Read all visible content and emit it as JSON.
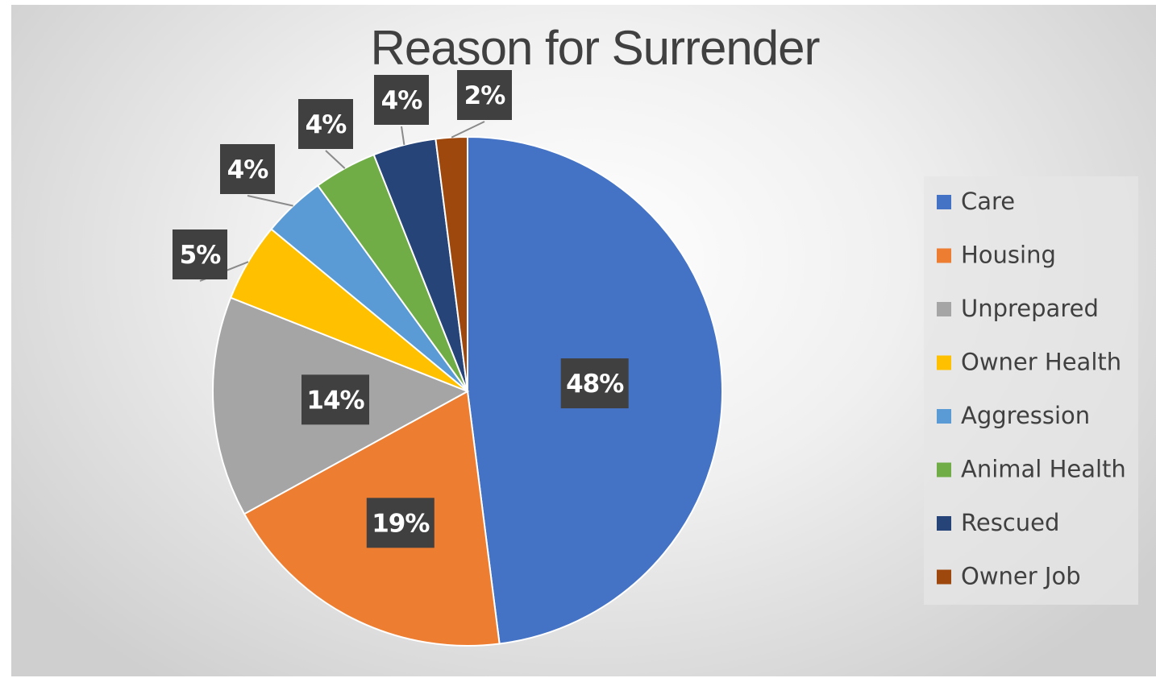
{
  "chart_data": {
    "type": "pie",
    "title": "Reason for Surrender",
    "legend_position": "right",
    "slices": [
      {
        "name": "Care",
        "value": 48,
        "label": "48%",
        "color": "#4472C4"
      },
      {
        "name": "Housing",
        "value": 19,
        "label": "19%",
        "color": "#ED7D31"
      },
      {
        "name": "Unprepared",
        "value": 14,
        "label": "14%",
        "color": "#A5A5A5"
      },
      {
        "name": "Owner Health",
        "value": 5,
        "label": "5%",
        "color": "#FFC000"
      },
      {
        "name": "Aggression",
        "value": 4,
        "label": "4%",
        "color": "#5B9BD5"
      },
      {
        "name": "Animal Health",
        "value": 4,
        "label": "4%",
        "color": "#70AD47"
      },
      {
        "name": "Rescued",
        "value": 4,
        "label": "4%",
        "color": "#264478"
      },
      {
        "name": "Owner Job",
        "value": 2,
        "label": "2%",
        "color": "#9E480E"
      }
    ],
    "label_style": {
      "box_color": "#404040",
      "text_color": "#FFFFFF"
    }
  }
}
